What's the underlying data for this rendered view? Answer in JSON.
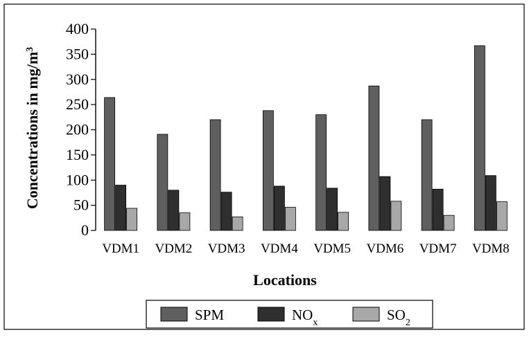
{
  "chart_data": {
    "type": "bar",
    "title": "",
    "xlabel": "Locations",
    "ylabel": "Concentrations in mg/m³",
    "ylim": [
      0,
      400
    ],
    "yticks": [
      "0",
      "50",
      "100",
      "150",
      "200",
      "250",
      "300",
      "350",
      "400"
    ],
    "categories": [
      "VDM1",
      "VDM2",
      "VDM3",
      "VDM4",
      "VDM5",
      "VDM6",
      "VDM7",
      "VDM8"
    ],
    "series": [
      {
        "name": "SPM",
        "color": "#5f5f5f",
        "values": [
          264,
          191,
          220,
          238,
          230,
          287,
          220,
          367
        ]
      },
      {
        "name": "NOx",
        "color": "#2f2f2f",
        "values": [
          90,
          80,
          76,
          88,
          84,
          107,
          82,
          109
        ]
      },
      {
        "name": "SO2",
        "color": "#a8a8a8",
        "values": [
          44,
          35,
          27,
          46,
          36,
          58,
          30,
          57
        ]
      }
    ],
    "grid": false,
    "legend_position": "bottom-center"
  }
}
